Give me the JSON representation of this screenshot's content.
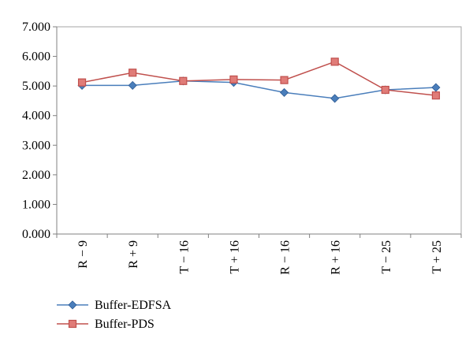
{
  "chart_data": {
    "type": "line",
    "categories": [
      "R − 9",
      "R + 9",
      "T − 16",
      "T + 16",
      "R − 16",
      "R + 16",
      "T − 25",
      "T + 25"
    ],
    "ylim": [
      0,
      7
    ],
    "yticks": [
      "0.000",
      "1.000",
      "2.000",
      "3.000",
      "4.000",
      "5.000",
      "6.000",
      "7.000"
    ],
    "grid": false,
    "legend_position": "bottom-left",
    "series": [
      {
        "name": "Buffer-EDFSA",
        "color": "#4a7ebb",
        "marker": "diamond",
        "values": [
          5.02,
          5.02,
          5.17,
          5.12,
          4.78,
          4.58,
          4.87,
          4.95
        ]
      },
      {
        "name": "Buffer-PDS",
        "color": "#c0504d",
        "marker": "square",
        "values": [
          5.12,
          5.45,
          5.17,
          5.22,
          5.2,
          5.82,
          4.87,
          4.68
        ]
      }
    ]
  }
}
